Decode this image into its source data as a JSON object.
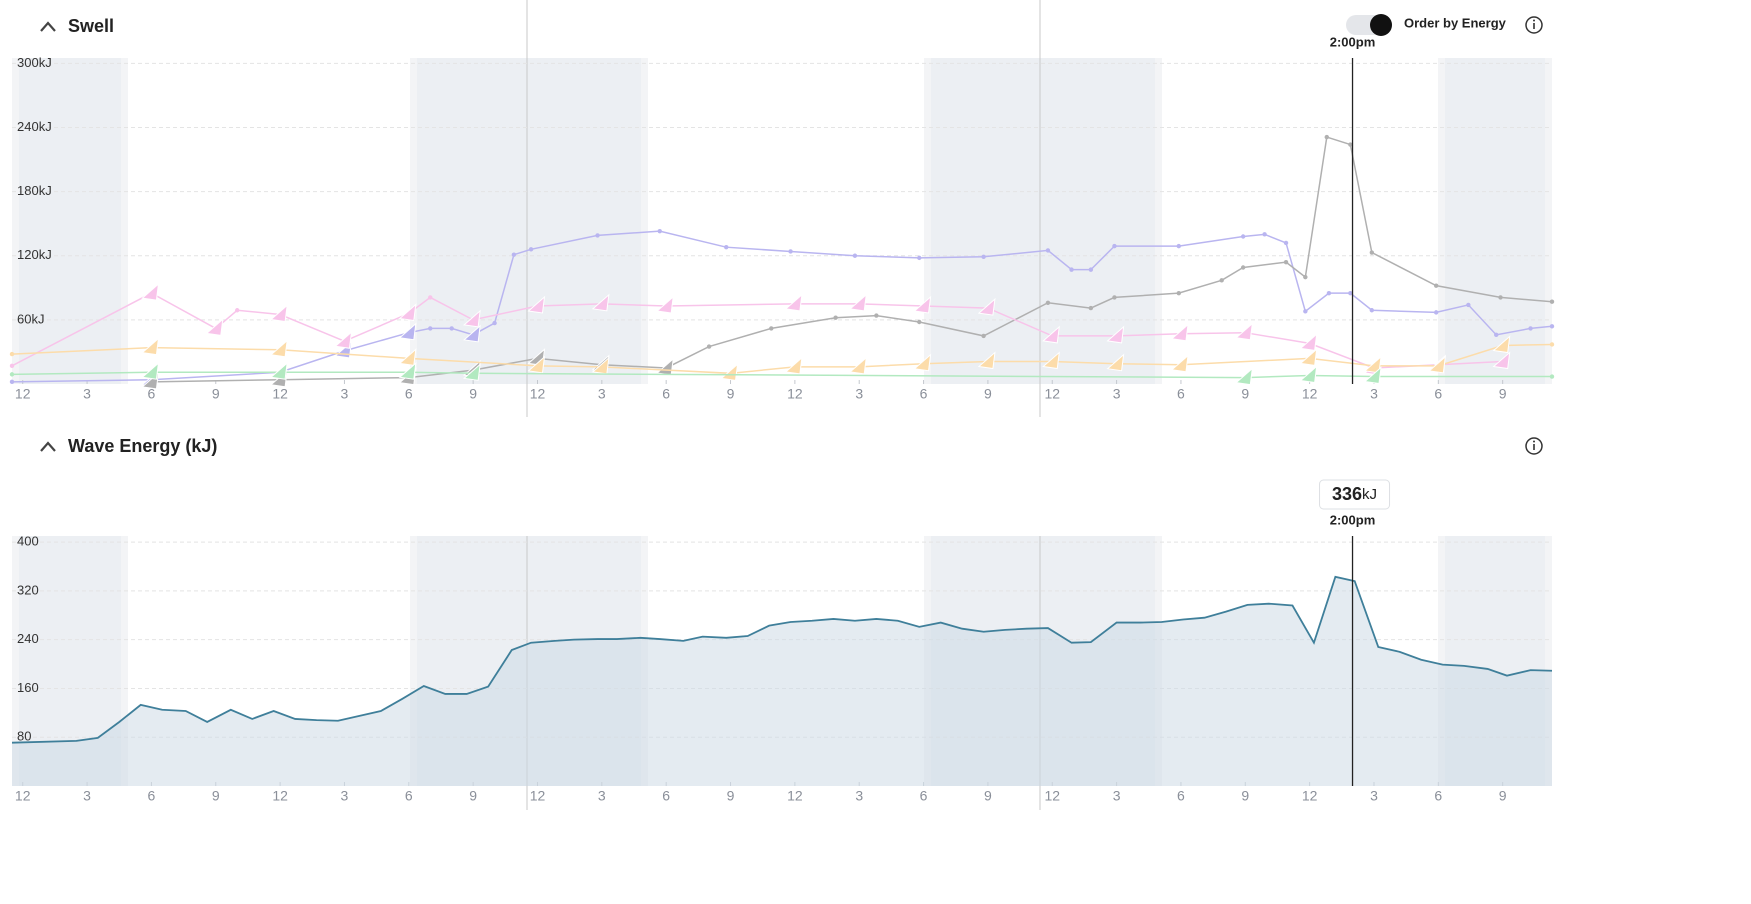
{
  "chart_data": [
    {
      "type": "line",
      "title": "Swell",
      "toggle_label": "Order by Energy",
      "cursor": {
        "x": 62,
        "label": "2:00pm"
      },
      "xlim": [
        -0.5,
        71.3
      ],
      "xticks": [
        {
          "value": 0,
          "label": "12"
        },
        {
          "value": 3,
          "label": "3"
        },
        {
          "value": 6,
          "label": "6"
        },
        {
          "value": 9,
          "label": "9"
        },
        {
          "value": 12,
          "label": "12"
        },
        {
          "value": 15,
          "label": "3"
        },
        {
          "value": 18,
          "label": "6"
        },
        {
          "value": 21,
          "label": "9"
        },
        {
          "value": 24,
          "label": "12"
        },
        {
          "value": 27,
          "label": "3"
        },
        {
          "value": 30,
          "label": "6"
        },
        {
          "value": 33,
          "label": "9"
        },
        {
          "value": 36,
          "label": "12"
        },
        {
          "value": 39,
          "label": "3"
        },
        {
          "value": 42,
          "label": "6"
        },
        {
          "value": 45,
          "label": "9"
        },
        {
          "value": 48,
          "label": "12"
        },
        {
          "value": 51,
          "label": "3"
        },
        {
          "value": 54,
          "label": "6"
        },
        {
          "value": 57,
          "label": "9"
        },
        {
          "value": 60,
          "label": "12"
        },
        {
          "value": 63,
          "label": "3"
        },
        {
          "value": 66,
          "label": "6"
        },
        {
          "value": 69,
          "label": "9"
        }
      ],
      "ylim": [
        0,
        305
      ],
      "yticks": [
        {
          "value": 60,
          "label": "60kJ"
        },
        {
          "value": 120,
          "label": "120kJ"
        },
        {
          "value": 180,
          "label": "180kJ"
        },
        {
          "value": 240,
          "label": "240kJ"
        },
        {
          "value": 300,
          "label": "300kJ"
        }
      ],
      "grid": true,
      "series": [
        {
          "color": "#b9b5f0",
          "x": [
            -0.5,
            6,
            12,
            15,
            18,
            19,
            20,
            21,
            22,
            22.9,
            23.7,
            26.8,
            29.7,
            32.8,
            35.8,
            38.8,
            41.8,
            44.8,
            47.8,
            48.9,
            49.8,
            50.9,
            53.9,
            56.9,
            57.9,
            58.9,
            59.8,
            60.9,
            61.9,
            62.9,
            65.9,
            67.4,
            68.7,
            70.3,
            71.3
          ],
          "values": [
            2,
            4,
            11,
            31,
            48,
            52,
            52,
            46,
            57,
            121,
            126,
            139,
            143,
            128,
            124,
            120,
            118,
            119,
            125,
            107,
            107,
            129,
            129,
            138,
            140,
            132,
            68,
            85,
            85,
            69,
            67,
            74,
            46,
            52,
            54
          ]
        },
        {
          "color": "#b0b0b0",
          "x": [
            6,
            12,
            18,
            21,
            24,
            27,
            30,
            32,
            34.9,
            37.9,
            39.8,
            41.8,
            44.8,
            47.8,
            49.8,
            50.9,
            53.9,
            55.9,
            56.9,
            58.9,
            59.8,
            60.8,
            61.9,
            62.9,
            65.9,
            68.9,
            71.3
          ],
          "values": [
            2,
            4,
            6,
            13,
            24,
            18,
            15,
            35,
            52,
            62,
            64,
            58,
            45,
            76,
            71,
            81,
            85,
            97,
            109,
            114,
            100,
            231,
            224,
            123,
            92,
            81,
            77
          ]
        },
        {
          "color": "#f8c4ea",
          "x": [
            -0.5,
            6,
            9,
            10,
            12,
            15,
            18,
            19,
            21,
            24,
            27,
            30,
            36,
            39,
            42,
            45,
            48,
            51,
            54,
            57,
            60,
            63,
            66,
            69
          ],
          "values": [
            17,
            85,
            52,
            69,
            65,
            40,
            66,
            81,
            60,
            73,
            75,
            73,
            75,
            75,
            73,
            71,
            45,
            45,
            47,
            48,
            38,
            15,
            18,
            21
          ]
        },
        {
          "color": "#fcdcaa",
          "x": [
            -0.5,
            6,
            12,
            18,
            24,
            27,
            33,
            36,
            39,
            42,
            45,
            48,
            51,
            54,
            60,
            63,
            66,
            69,
            71.3
          ],
          "values": [
            28,
            34,
            32,
            24,
            17,
            16,
            10,
            16,
            16,
            19,
            21,
            21,
            19,
            18,
            24,
            17,
            17,
            36,
            37
          ]
        },
        {
          "color": "#b2e9c0",
          "x": [
            -0.5,
            6,
            12,
            18,
            21,
            57,
            60,
            63,
            71.3
          ],
          "values": [
            9,
            11,
            11,
            11,
            10,
            6,
            8,
            7,
            7
          ]
        }
      ]
    },
    {
      "type": "area",
      "title": "Wave Energy (kJ)",
      "cursor": {
        "x": 62,
        "label": "2:00pm",
        "value": 336,
        "unit": "kJ"
      },
      "xlim": [
        -0.5,
        71.3
      ],
      "xticks": [
        {
          "value": 0,
          "label": "12"
        },
        {
          "value": 3,
          "label": "3"
        },
        {
          "value": 6,
          "label": "6"
        },
        {
          "value": 9,
          "label": "9"
        },
        {
          "value": 12,
          "label": "12"
        },
        {
          "value": 15,
          "label": "3"
        },
        {
          "value": 18,
          "label": "6"
        },
        {
          "value": 21,
          "label": "9"
        },
        {
          "value": 24,
          "label": "12"
        },
        {
          "value": 27,
          "label": "3"
        },
        {
          "value": 30,
          "label": "6"
        },
        {
          "value": 33,
          "label": "9"
        },
        {
          "value": 36,
          "label": "12"
        },
        {
          "value": 39,
          "label": "3"
        },
        {
          "value": 42,
          "label": "6"
        },
        {
          "value": 45,
          "label": "9"
        },
        {
          "value": 48,
          "label": "12"
        },
        {
          "value": 51,
          "label": "3"
        },
        {
          "value": 54,
          "label": "6"
        },
        {
          "value": 57,
          "label": "9"
        },
        {
          "value": 60,
          "label": "12"
        },
        {
          "value": 63,
          "label": "3"
        },
        {
          "value": 66,
          "label": "6"
        },
        {
          "value": 69,
          "label": "9"
        }
      ],
      "ylim": [
        0,
        410
      ],
      "yticks": [
        80,
        160,
        240,
        320,
        400
      ],
      "grid": true,
      "color": "#3f7f9a",
      "x": [
        -0.5,
        2.5,
        3.5,
        4.5,
        5.5,
        6.5,
        7.6,
        8.6,
        9.7,
        10.7,
        11.7,
        12.7,
        13.7,
        14.7,
        15.7,
        16.7,
        17.7,
        18.7,
        19.7,
        20.7,
        21.7,
        22.8,
        23.7,
        24.8,
        25.7,
        26.8,
        27.7,
        28.8,
        29.7,
        30.8,
        31.7,
        32.8,
        33.8,
        34.8,
        35.8,
        36.8,
        37.8,
        38.8,
        39.8,
        40.8,
        41.8,
        42.8,
        43.8,
        44.8,
        45.8,
        46.8,
        47.8,
        48.9,
        49.8,
        51.0,
        52.1,
        53.1,
        54.1,
        55.1,
        56.1,
        57.1,
        58.1,
        59.2,
        60.2,
        61.2,
        62.1,
        63.2,
        64.2,
        65.2,
        66.2,
        67.2,
        68.3,
        69.2,
        70.3,
        71.3
      ],
      "values": [
        71,
        74,
        79,
        105,
        133,
        125,
        123,
        105,
        125,
        110,
        123,
        110,
        108,
        107,
        115,
        123,
        143,
        164,
        151,
        151,
        163,
        223,
        235,
        238,
        240,
        241,
        241,
        243,
        241,
        238,
        245,
        243,
        246,
        263,
        269,
        271,
        274,
        271,
        274,
        271,
        261,
        268,
        258,
        253,
        256,
        258,
        259,
        235,
        236,
        268,
        268,
        269,
        273,
        276,
        286,
        297,
        299,
        296,
        235,
        343,
        336,
        228,
        220,
        207,
        199,
        197,
        192,
        181,
        190,
        189
      ]
    }
  ]
}
